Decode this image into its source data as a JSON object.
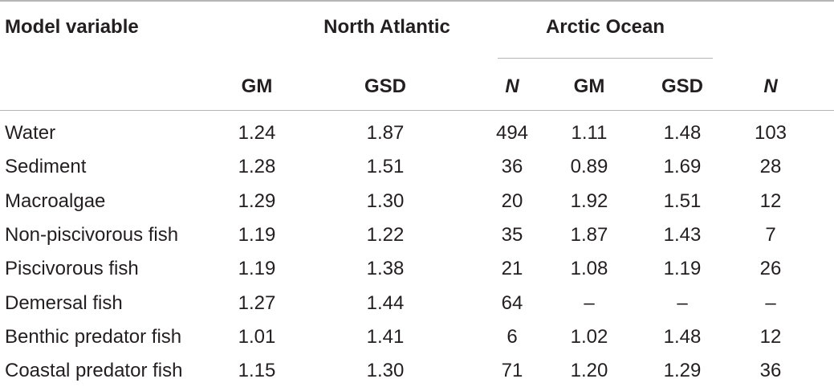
{
  "table": {
    "header": {
      "top": [
        "Model variable",
        "North Atlantic",
        "Arctic Ocean"
      ],
      "sub": [
        "GM",
        "GSD",
        "N",
        "GM",
        "GSD",
        "N"
      ]
    },
    "rows": [
      [
        "Water",
        "1.24",
        "1.87",
        "494",
        "1.11",
        "1.48",
        "103"
      ],
      [
        "Sediment",
        "1.28",
        "1.51",
        "36",
        "0.89",
        "1.69",
        "28"
      ],
      [
        "Macroalgae",
        "1.29",
        "1.30",
        "20",
        "1.92",
        "1.51",
        "12"
      ],
      [
        "Non-piscivorous fish",
        "1.19",
        "1.22",
        "35",
        "1.87",
        "1.43",
        "7"
      ],
      [
        "Piscivorous fish",
        "1.19",
        "1.38",
        "21",
        "1.08",
        "1.19",
        "26"
      ],
      [
        "Demersal fish",
        "1.27",
        "1.44",
        "64",
        "–",
        "–",
        "–"
      ],
      [
        "Benthic predator fish",
        "1.01",
        "1.41",
        "6",
        "1.02",
        "1.48",
        "12"
      ],
      [
        "Coastal predator fish",
        "1.15",
        "1.30",
        "71",
        "1.20",
        "1.29",
        "36"
      ]
    ]
  }
}
